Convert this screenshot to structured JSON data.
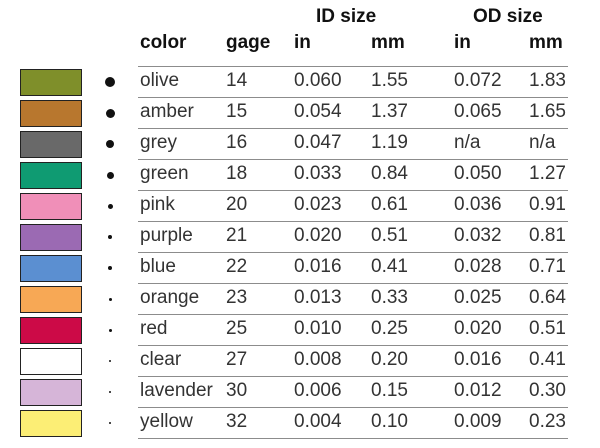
{
  "headers": {
    "id_group": "ID size",
    "od_group": "OD size",
    "color": "color",
    "gage": "gage",
    "id_in": "in",
    "id_mm": "mm",
    "od_in": "in",
    "od_mm": "mm"
  },
  "rows": [
    {
      "color": "olive",
      "swatch": "#7f8f2a",
      "gage": "14",
      "id_in": "0.060",
      "id_mm": "1.55",
      "od_in": "0.072",
      "od_mm": "1.83"
    },
    {
      "color": "amber",
      "swatch": "#b8772e",
      "gage": "15",
      "id_in": "0.054",
      "id_mm": "1.37",
      "od_in": "0.065",
      "od_mm": "1.65"
    },
    {
      "color": "grey",
      "swatch": "#696969",
      "gage": "16",
      "id_in": "0.047",
      "id_mm": "1.19",
      "od_in": "n/a",
      "od_mm": "n/a"
    },
    {
      "color": "green",
      "swatch": "#0f9b72",
      "gage": "18",
      "id_in": "0.033",
      "id_mm": "0.84",
      "od_in": "0.050",
      "od_mm": "1.27"
    },
    {
      "color": "pink",
      "swatch": "#f08fb8",
      "gage": "20",
      "id_in": "0.023",
      "id_mm": "0.61",
      "od_in": "0.036",
      "od_mm": "0.91"
    },
    {
      "color": "purple",
      "swatch": "#9b6ab3",
      "gage": "21",
      "id_in": "0.020",
      "id_mm": "0.51",
      "od_in": "0.032",
      "od_mm": "0.81"
    },
    {
      "color": "blue",
      "swatch": "#5b8fd1",
      "gage": "22",
      "id_in": "0.016",
      "id_mm": "0.41",
      "od_in": "0.028",
      "od_mm": "0.71"
    },
    {
      "color": "orange",
      "swatch": "#f7a855",
      "gage": "23",
      "id_in": "0.013",
      "id_mm": "0.33",
      "od_in": "0.025",
      "od_mm": "0.64"
    },
    {
      "color": "red",
      "swatch": "#cc0a47",
      "gage": "25",
      "id_in": "0.010",
      "id_mm": "0.25",
      "od_in": "0.020",
      "od_mm": "0.51"
    },
    {
      "color": "clear",
      "swatch": "#ffffff",
      "gage": "27",
      "id_in": "0.008",
      "id_mm": "0.20",
      "od_in": "0.016",
      "od_mm": "0.41"
    },
    {
      "color": "lavender",
      "swatch": "#d6b5d8",
      "gage": "30",
      "id_in": "0.006",
      "id_mm": "0.15",
      "od_in": "0.012",
      "od_mm": "0.30"
    },
    {
      "color": "yellow",
      "swatch": "#fcee75",
      "gage": "32",
      "id_in": "0.004",
      "id_mm": "0.10",
      "od_in": "0.009",
      "od_mm": "0.23"
    }
  ]
}
